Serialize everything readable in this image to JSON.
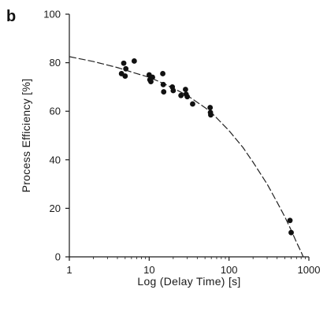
{
  "chart_data": {
    "type": "scatter",
    "panel_label": "b",
    "xlabel": "Log (Delay Time) [s]",
    "ylabel": "Process  Efficiency  [%]",
    "x_scale": "log",
    "xlim": [
      1,
      1000
    ],
    "ylim": [
      0,
      100
    ],
    "x_ticks": [
      1,
      10,
      100,
      1000
    ],
    "x_tick_labels": [
      "1",
      "10",
      "100",
      "1000"
    ],
    "y_ticks": [
      0,
      20,
      40,
      60,
      80,
      100
    ],
    "y_tick_labels": [
      "0",
      "20",
      "40",
      "60",
      "80",
      "100"
    ],
    "grid": false,
    "series": [
      {
        "values": [
          {
            "x": 4.5,
            "y": 75.5
          },
          {
            "x": 4.8,
            "y": 79.8
          },
          {
            "x": 5.0,
            "y": 74.5
          },
          {
            "x": 5.1,
            "y": 77.5
          },
          {
            "x": 6.5,
            "y": 80.7
          },
          {
            "x": 10.0,
            "y": 75.0
          },
          {
            "x": 10.2,
            "y": 73.0
          },
          {
            "x": 10.5,
            "y": 72.2
          },
          {
            "x": 11.0,
            "y": 74.0
          },
          {
            "x": 14.8,
            "y": 75.5
          },
          {
            "x": 15.0,
            "y": 71.0
          },
          {
            "x": 15.2,
            "y": 68.0
          },
          {
            "x": 19.5,
            "y": 70.0
          },
          {
            "x": 20.0,
            "y": 68.5
          },
          {
            "x": 25.0,
            "y": 66.5
          },
          {
            "x": 28.5,
            "y": 69.0
          },
          {
            "x": 29.0,
            "y": 67.0
          },
          {
            "x": 30.0,
            "y": 66.0
          },
          {
            "x": 35.0,
            "y": 63.0
          },
          {
            "x": 58.0,
            "y": 61.5
          },
          {
            "x": 58.5,
            "y": 59.5
          },
          {
            "x": 59.0,
            "y": 58.5
          },
          {
            "x": 580,
            "y": 15.0
          },
          {
            "x": 600,
            "y": 10.0
          }
        ]
      }
    ],
    "fit_line": {
      "style": "dashed",
      "points": [
        {
          "x": 1,
          "y": 82.5
        },
        {
          "x": 2,
          "y": 80.5
        },
        {
          "x": 4,
          "y": 78.0
        },
        {
          "x": 7,
          "y": 75.5
        },
        {
          "x": 10,
          "y": 74.0
        },
        {
          "x": 15,
          "y": 71.5
        },
        {
          "x": 20,
          "y": 69.5
        },
        {
          "x": 30,
          "y": 66.5
        },
        {
          "x": 50,
          "y": 61.5
        },
        {
          "x": 60,
          "y": 59.5
        },
        {
          "x": 100,
          "y": 52.0
        },
        {
          "x": 150,
          "y": 45.0
        },
        {
          "x": 200,
          "y": 39.0
        },
        {
          "x": 300,
          "y": 30.0
        },
        {
          "x": 400,
          "y": 22.5
        },
        {
          "x": 500,
          "y": 16.5
        },
        {
          "x": 600,
          "y": 11.0
        },
        {
          "x": 700,
          "y": 6.0
        },
        {
          "x": 800,
          "y": 2.0
        },
        {
          "x": 850,
          "y": 0.0
        }
      ]
    },
    "colors": {
      "marker": "#111111",
      "line": "#222222",
      "axis": "#1a1a1a"
    }
  }
}
